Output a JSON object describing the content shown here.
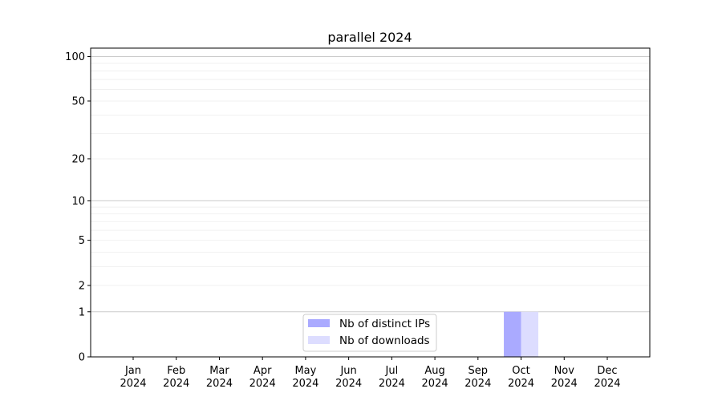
{
  "chart_data": {
    "type": "bar",
    "title": "parallel 2024",
    "xlabel": "",
    "ylabel": "",
    "yscale": "log(1+y)",
    "ylim": [
      0,
      114
    ],
    "yticks": [
      0,
      1,
      2,
      5,
      10,
      20,
      50,
      100
    ],
    "grid": true,
    "legend_position": "bottom-center",
    "categories": [
      "Jan\n2024",
      "Feb\n2024",
      "Mar\n2024",
      "Apr\n2024",
      "May\n2024",
      "Jun\n2024",
      "Jul\n2024",
      "Aug\n2024",
      "Sep\n2024",
      "Oct\n2024",
      "Nov\n2024",
      "Dec\n2024"
    ],
    "series": [
      {
        "name": "Nb of distinct IPs",
        "color": "#aaaaff",
        "values": [
          0,
          0,
          0,
          0,
          0,
          0,
          0,
          0,
          0,
          1,
          0,
          0
        ]
      },
      {
        "name": "Nb of downloads",
        "color": "#ddddff",
        "values": [
          0,
          0,
          0,
          0,
          0,
          0,
          0,
          0,
          0,
          1,
          0,
          0
        ]
      }
    ]
  }
}
